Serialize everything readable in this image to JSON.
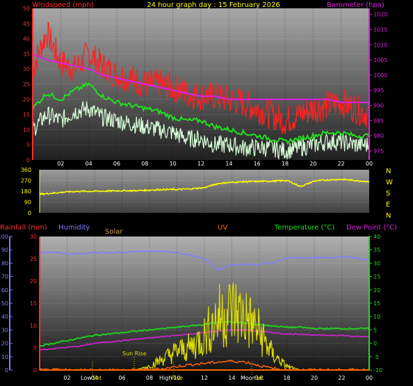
{
  "title": "24 hour graph day : 15 February 2026",
  "colors": {
    "wind": "#ff2020",
    "gust": "#ff2020",
    "avg": "#22dd22",
    "speed": "#d8ffd8",
    "baro": "#e020e0",
    "dir": "#ffff00",
    "hum": "#8080ff",
    "temp": "#22cc22",
    "dew": "#e020e0",
    "solar": "#dddd00",
    "uv": "#ff6600",
    "rain": "#ff3030",
    "axis_red": "#ff3030",
    "axis_mag": "#e020e0",
    "axis_yellow": "#ffff00",
    "axis_blue": "#8080ff",
    "axis_green": "#22dd22"
  },
  "hour_labels": [
    "02",
    "04",
    "06",
    "08",
    "10",
    "12",
    "14",
    "16",
    "18",
    "20",
    "22",
    "00"
  ],
  "chart_data": [
    {
      "type": "line",
      "labels": {
        "left": "Windspeed (mph)",
        "right": "Barometer (hpa)"
      },
      "left_ticks": [
        "0",
        "5",
        "10",
        "15",
        "20",
        "25",
        "30",
        "35",
        "40",
        "45",
        "50"
      ],
      "right_ticks": [
        "975",
        "980",
        "985",
        "990",
        "995",
        "1000",
        "1005",
        "1010",
        "1015",
        "1020"
      ],
      "ylim_left": [
        0,
        50
      ],
      "ylim_right": [
        972,
        1022
      ],
      "x": [
        0,
        1,
        2,
        3,
        4,
        5,
        6,
        7,
        8,
        9,
        10,
        11,
        12,
        13,
        14,
        15,
        16,
        17,
        18,
        19,
        20,
        21,
        22,
        23,
        24
      ],
      "series": [
        {
          "key": "gust",
          "values": [
            30,
            42,
            32,
            30,
            35,
            31,
            28,
            27,
            25,
            25,
            24,
            22,
            21,
            21,
            20,
            19,
            17,
            15,
            13,
            15,
            17,
            18,
            19,
            17,
            15
          ]
        },
        {
          "key": "avg",
          "values": [
            17,
            22,
            20,
            23,
            25,
            21,
            19,
            18,
            17,
            16,
            14,
            13,
            13,
            11,
            10,
            9,
            8,
            7,
            6,
            7,
            8,
            9,
            9,
            8,
            8
          ]
        },
        {
          "key": "speed",
          "values": [
            10,
            15,
            13,
            16,
            17,
            14,
            13,
            12,
            11,
            10,
            9,
            7,
            7,
            5,
            5,
            4,
            4,
            4,
            3,
            4,
            5,
            6,
            6,
            5,
            5
          ]
        },
        {
          "key": "baro",
          "values": [
            1007,
            1005,
            1004,
            1003,
            1002,
            1000,
            999,
            998,
            997,
            996,
            995,
            994,
            993,
            993,
            992,
            992,
            992,
            992,
            992,
            992,
            992,
            992,
            991,
            991,
            991
          ]
        }
      ]
    },
    {
      "type": "line",
      "labels": {
        "right": [
          "N",
          "W",
          "S",
          "E",
          "N"
        ]
      },
      "left_ticks": [
        "0",
        "90",
        "180",
        "270",
        "360"
      ],
      "ylim": [
        0,
        360
      ],
      "x": [
        0,
        1,
        2,
        3,
        4,
        5,
        6,
        7,
        8,
        9,
        10,
        11,
        12,
        13,
        14,
        15,
        16,
        17,
        18,
        19,
        20,
        21,
        22,
        23,
        24
      ],
      "series": [
        {
          "key": "dir",
          "values": [
            155,
            165,
            175,
            180,
            180,
            182,
            185,
            185,
            190,
            195,
            195,
            200,
            210,
            245,
            255,
            260,
            262,
            265,
            270,
            220,
            265,
            275,
            280,
            270,
            260
          ]
        }
      ]
    },
    {
      "type": "line",
      "labels": {
        "rain": "Rainfall (mm)",
        "hum": "Humidity",
        "solar": "Solar",
        "uv": "UV",
        "temp": "Temperature (°C)",
        "dew": "Dew Point (°C)"
      },
      "hum_ticks": [
        "0",
        "10",
        "20",
        "30",
        "40",
        "50",
        "60",
        "70",
        "80",
        "90",
        "100"
      ],
      "rain_ticks": [
        "0",
        "5",
        "10",
        "15",
        "20",
        "25",
        "30"
      ],
      "temp_ticks": [
        "-10",
        "-5",
        "0",
        "5",
        "10",
        "15",
        "20",
        "25",
        "30",
        "35",
        "40"
      ],
      "annotations": {
        "low": "Low",
        "set": "Set",
        "sun_rise": "Sun Rise",
        "high": "High",
        "rise": "Rise",
        "moon": "Moon",
        "set2": "Set"
      },
      "x": [
        0,
        1,
        2,
        3,
        4,
        5,
        6,
        7,
        8,
        9,
        10,
        11,
        12,
        13,
        14,
        15,
        16,
        17,
        18,
        19,
        20,
        21,
        22,
        23,
        24
      ],
      "series": [
        {
          "key": "hum",
          "values": [
            88,
            88,
            87,
            87,
            88,
            88,
            88,
            89,
            89,
            89,
            88,
            86,
            83,
            75,
            79,
            79,
            79,
            80,
            84,
            84,
            84,
            84,
            85,
            84,
            82
          ]
        },
        {
          "key": "temp",
          "values": [
            -1,
            0,
            1,
            2,
            3,
            3.5,
            4,
            4.5,
            5,
            5.5,
            6,
            6.5,
            7,
            8,
            8,
            7.5,
            7,
            6.5,
            6,
            6,
            5.5,
            5.5,
            5.5,
            5.5,
            5.5
          ]
        },
        {
          "key": "dew",
          "values": [
            -2.5,
            -2,
            -1.5,
            -1,
            0,
            0.5,
            1,
            1.5,
            2,
            2.5,
            3,
            3.5,
            4,
            4.5,
            5,
            5,
            4.5,
            4,
            3.5,
            3.5,
            3,
            3,
            3,
            2.5,
            2.5
          ]
        },
        {
          "key": "solar",
          "values": [
            0,
            0,
            0,
            0,
            0,
            0,
            0,
            0,
            1,
            3,
            5,
            6,
            9,
            14,
            16,
            14,
            10,
            4,
            1,
            0,
            0,
            0,
            0,
            0,
            0
          ]
        },
        {
          "key": "uv",
          "values": [
            0,
            0,
            0,
            0,
            0,
            0,
            0,
            0,
            0.1,
            0.3,
            0.8,
            1.2,
            1.5,
            1.8,
            2,
            1.8,
            1,
            0.3,
            0,
            0,
            0,
            0,
            0,
            0,
            0
          ]
        },
        {
          "key": "rain",
          "values": [
            0,
            0,
            0,
            0,
            0,
            0,
            0,
            0,
            0,
            0,
            0,
            0,
            0,
            0,
            0,
            0,
            0,
            0,
            0,
            0,
            0,
            0,
            0,
            0,
            0
          ]
        }
      ]
    }
  ]
}
